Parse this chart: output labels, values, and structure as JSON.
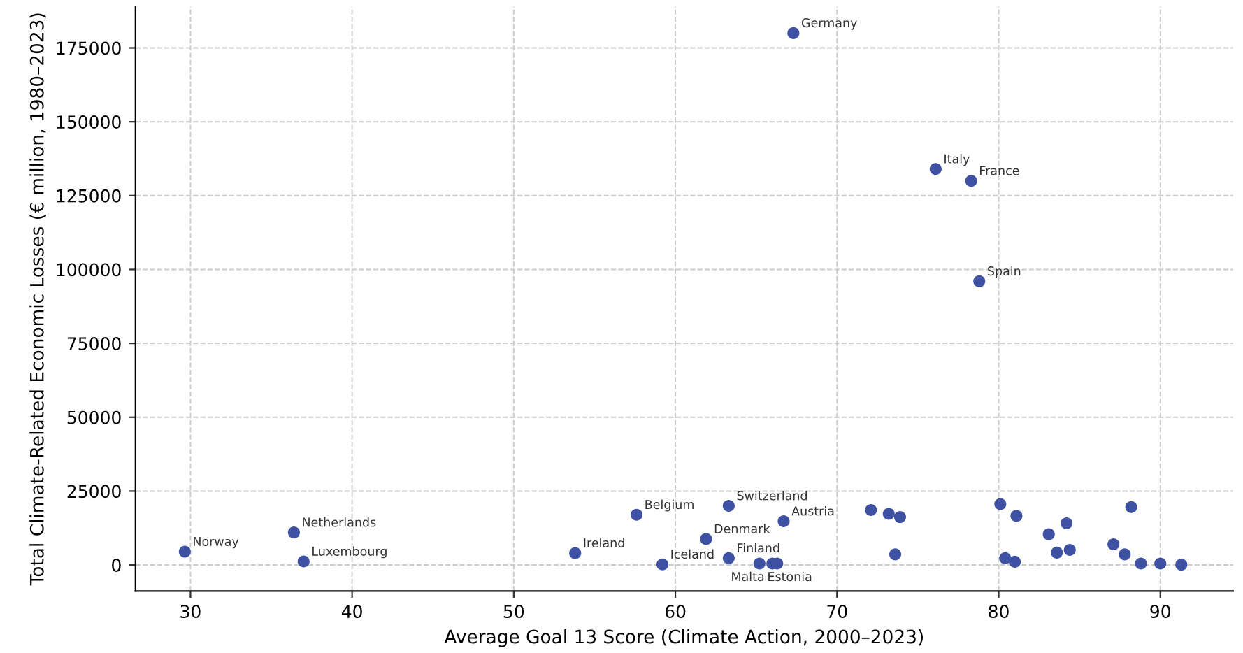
{
  "chart_data": {
    "type": "scatter",
    "xlabel": "Average Goal 13 Score (Climate Action, 2000–2023)",
    "ylabel": "Total Climate-Related Economic Losses (€ million, 1980–2023)",
    "x": [
      29.65,
      36.4,
      37.0,
      53.8,
      57.6,
      59.2,
      63.3,
      61.9,
      63.3,
      66.7,
      65.2,
      66.0,
      66.3,
      67.3,
      76.1,
      78.3,
      78.8,
      72.1,
      73.2,
      73.9,
      73.6,
      80.1,
      81.1,
      80.4,
      81.0,
      84.2,
      83.1,
      83.6,
      84.4,
      88.2,
      87.1,
      87.8,
      88.8,
      90.0,
      91.3
    ],
    "values": [
      4500,
      11000,
      1200,
      4000,
      17000,
      200,
      20000,
      8800,
      2300,
      14800,
      500,
      500,
      500,
      180000,
      134000,
      130000,
      96000,
      18600,
      17300,
      16200,
      3600,
      20600,
      16600,
      2300,
      1100,
      14100,
      10400,
      4200,
      5100,
      19600,
      7000,
      3600,
      500,
      500,
      100
    ],
    "color": "#3f51a3",
    "marker": "circle",
    "annotations": [
      {
        "text": "Norway",
        "x": 29.65,
        "y": 4500
      },
      {
        "text": "Netherlands",
        "x": 36.4,
        "y": 11000
      },
      {
        "text": "Luxembourg",
        "x": 37.0,
        "y": 1200
      },
      {
        "text": "Ireland",
        "x": 53.8,
        "y": 4000
      },
      {
        "text": "Belgium",
        "x": 57.6,
        "y": 17000
      },
      {
        "text": "Iceland",
        "x": 59.2,
        "y": 200
      },
      {
        "text": "Switzerland",
        "x": 63.3,
        "y": 20000
      },
      {
        "text": "Denmark",
        "x": 61.9,
        "y": 8800
      },
      {
        "text": "Finland",
        "x": 63.3,
        "y": 2300
      },
      {
        "text": "Austria",
        "x": 66.7,
        "y": 14800
      },
      {
        "text": "Estonia",
        "x": 65.2,
        "y": 500
      },
      {
        "text": "Malta",
        "x": 66.0,
        "y": 500
      },
      {
        "text": "Germany",
        "x": 67.3,
        "y": 180000
      },
      {
        "text": "Italy",
        "x": 76.1,
        "y": 134000
      },
      {
        "text": "France",
        "x": 78.3,
        "y": 130000
      },
      {
        "text": "Spain",
        "x": 78.8,
        "y": 96000
      }
    ],
    "xlim": [
      26.6,
      94.5
    ],
    "ylim": [
      -8800,
      189000
    ],
    "xticks": [
      30,
      40,
      50,
      60,
      70,
      80,
      90
    ],
    "yticks": [
      0,
      25000,
      50000,
      75000,
      100000,
      125000,
      150000,
      175000
    ],
    "grid": true,
    "line_style": "dashed"
  }
}
